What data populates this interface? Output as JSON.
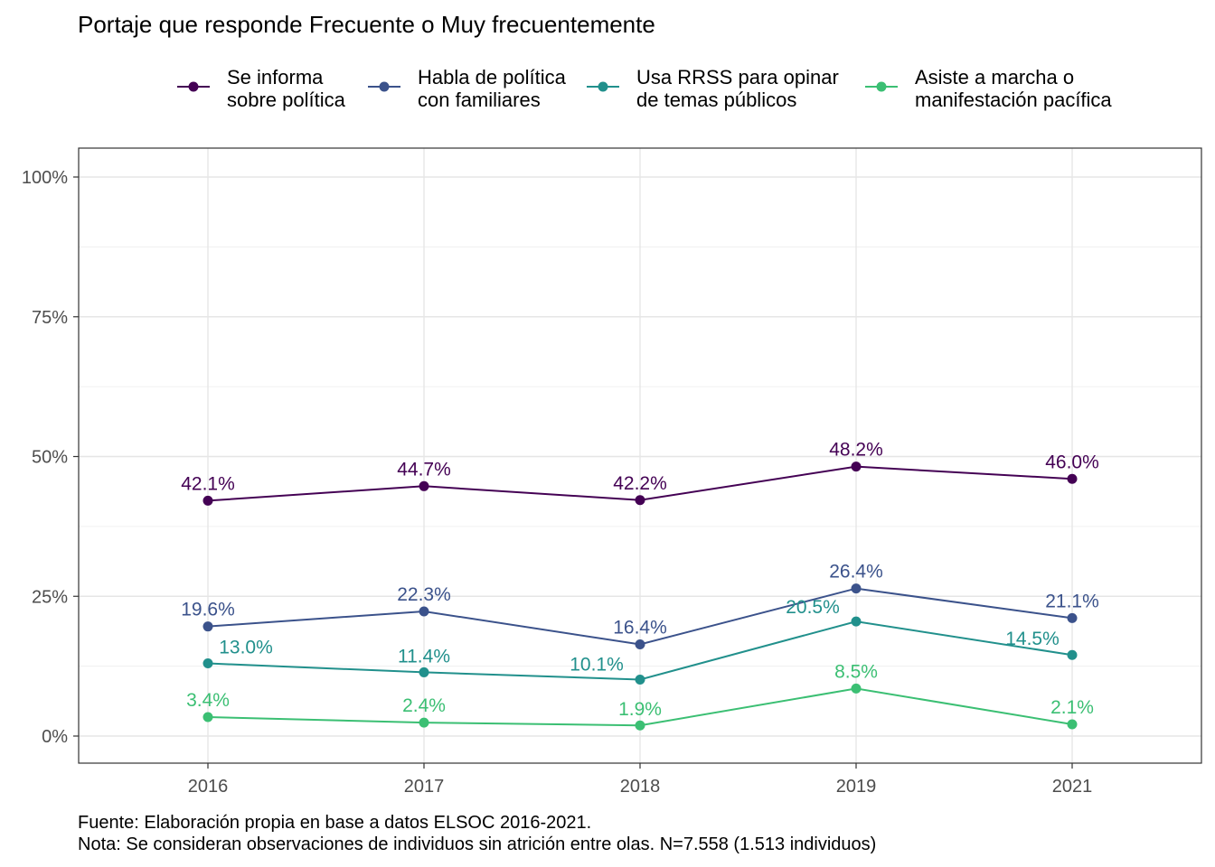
{
  "chart_data": {
    "type": "line",
    "title": "Portaje que responde Frecuente o Muy frecuentemente",
    "x": [
      "2016",
      "2017",
      "2018",
      "2019",
      "2021"
    ],
    "ylim": [
      0,
      100
    ],
    "yticks": [
      0,
      25,
      50,
      75,
      100
    ],
    "ytick_labels": [
      "0%",
      "25%",
      "50%",
      "75%",
      "100%"
    ],
    "grid": true,
    "legend_position": "top",
    "series": [
      {
        "name": "Se informa sobre política",
        "name_lines": [
          "Se informa",
          "sobre política"
        ],
        "color": "#440154",
        "values": [
          42.1,
          44.7,
          42.2,
          48.2,
          46.0
        ],
        "labels": [
          "42.1%",
          "44.7%",
          "42.2%",
          "48.2%",
          "46.0%"
        ]
      },
      {
        "name": "Habla de política con familiares",
        "name_lines": [
          "Habla de política",
          "con familiares"
        ],
        "color": "#3b528b",
        "values": [
          19.6,
          22.3,
          16.4,
          26.4,
          21.1
        ],
        "labels": [
          "19.6%",
          "22.3%",
          "16.4%",
          "26.4%",
          "21.1%"
        ]
      },
      {
        "name": "Usa RRSS para opinar de temas públicos",
        "name_lines": [
          "Usa RRSS para opinar",
          "de temas públicos"
        ],
        "color": "#21908c",
        "values": [
          13.0,
          11.4,
          10.1,
          20.5,
          14.5
        ],
        "labels": [
          "13.0%",
          "11.4%",
          "10.1%",
          "20.5%",
          "14.5%"
        ]
      },
      {
        "name": "Asiste a marcha o manifestación pacífica",
        "name_lines": [
          "Asiste a marcha o",
          "manifestación pacífica"
        ],
        "color": "#3bbf73",
        "values": [
          3.4,
          2.4,
          1.9,
          8.5,
          2.1
        ],
        "labels": [
          "3.4%",
          "2.4%",
          "1.9%",
          "8.5%",
          "2.1%"
        ]
      }
    ],
    "caption_lines": [
      "Fuente: Elaboración propia en base a datos ELSOC 2016-2021.",
      "Nota: Se consideran observaciones de individuos sin atrición entre olas. N=7.558 (1.513 individuos)"
    ]
  }
}
